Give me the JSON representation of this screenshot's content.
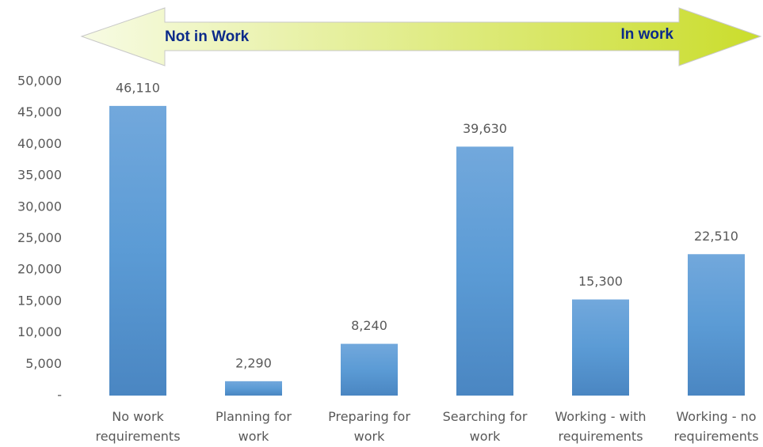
{
  "banner": {
    "left_label": "Not in Work",
    "right_label": "In work"
  },
  "chart_data": {
    "type": "bar",
    "categories": [
      "No work requirements",
      "Planning for work",
      "Preparing for work",
      "Searching for work",
      "Working - with requirements",
      "Working - no requirements"
    ],
    "values": [
      46110,
      2290,
      8240,
      39630,
      15300,
      22510
    ],
    "value_labels": [
      "46,110",
      "2,290",
      "8,240",
      "39,630",
      "15,300",
      "22,510"
    ],
    "color": "#5b9bd5",
    "ylim": [
      0,
      50000
    ],
    "yticks": [
      {
        "value": 0,
        "label": "-"
      },
      {
        "value": 5000,
        "label": "5,000"
      },
      {
        "value": 10000,
        "label": "10,000"
      },
      {
        "value": 15000,
        "label": "15,000"
      },
      {
        "value": 20000,
        "label": "20,000"
      },
      {
        "value": 25000,
        "label": "25,000"
      },
      {
        "value": 30000,
        "label": "30,000"
      },
      {
        "value": 35000,
        "label": "35,000"
      },
      {
        "value": 40000,
        "label": "40,000"
      },
      {
        "value": 45000,
        "label": "45,000"
      },
      {
        "value": 50000,
        "label": "50,000"
      }
    ],
    "grid": false
  }
}
